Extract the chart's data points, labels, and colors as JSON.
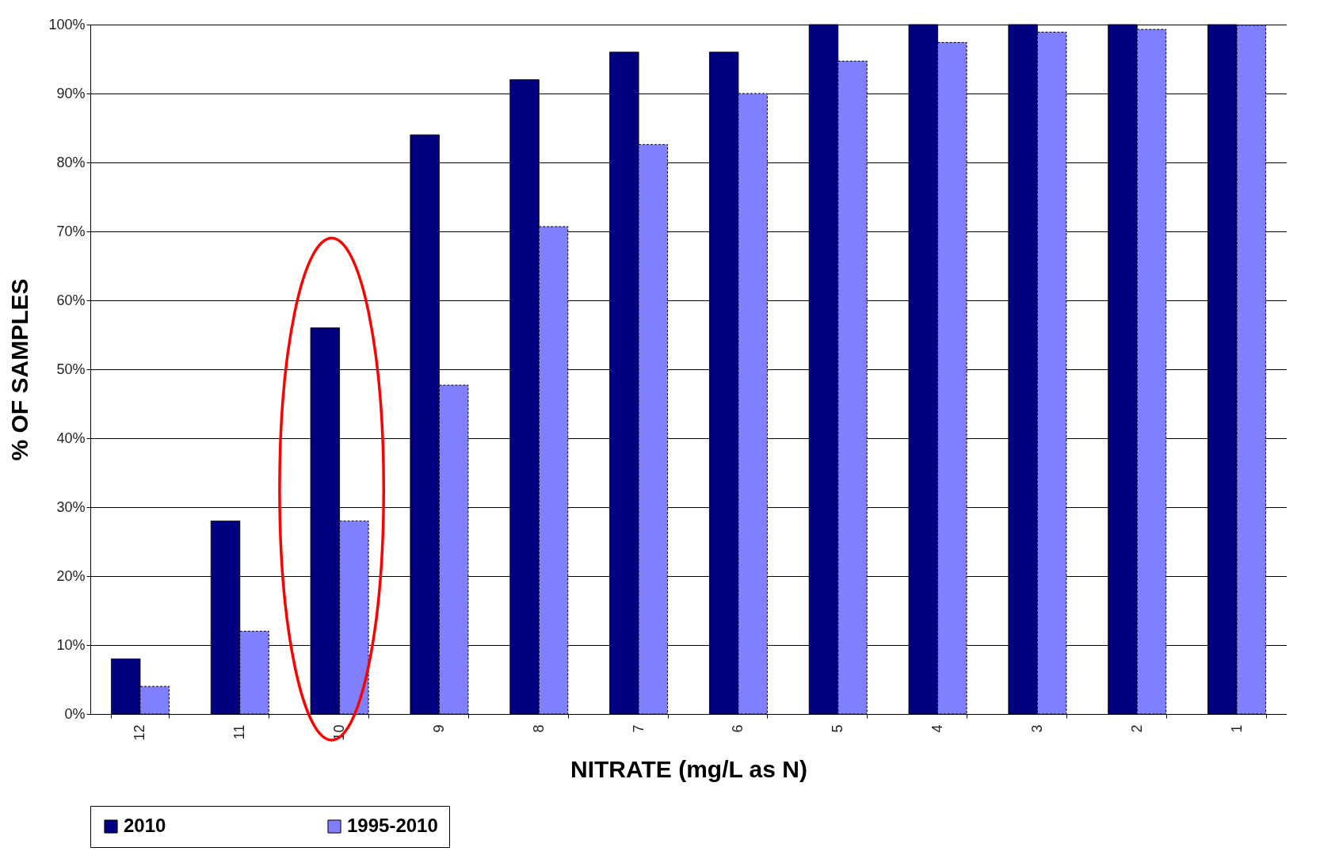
{
  "chart_data": {
    "type": "bar",
    "xlabel": "NITRATE (mg/L as N)",
    "ylabel": "% OF SAMPLES",
    "categories": [
      "12",
      "11",
      "10",
      "9",
      "8",
      "7",
      "6",
      "5",
      "4",
      "3",
      "2",
      "1"
    ],
    "series": [
      {
        "name": "2010",
        "color": "#000080",
        "values": [
          8,
          28,
          56,
          84,
          92,
          96,
          96,
          100,
          100,
          100,
          100,
          100
        ]
      },
      {
        "name": "1995-2010",
        "color": "#8080ff",
        "values": [
          4,
          12,
          28,
          47.7,
          70.7,
          82.6,
          90,
          94.7,
          97.4,
          98.9,
          99.3,
          99.9
        ]
      }
    ],
    "ylim": [
      0,
      100
    ],
    "yticks": [
      {
        "value": 0,
        "label": "0%"
      },
      {
        "value": 10,
        "label": "10%"
      },
      {
        "value": 20,
        "label": "20%"
      },
      {
        "value": 30,
        "label": "30%"
      },
      {
        "value": 40,
        "label": "40%"
      },
      {
        "value": 50,
        "label": "50%"
      },
      {
        "value": 60,
        "label": "60%"
      },
      {
        "value": 70,
        "label": "70%"
      },
      {
        "value": 80,
        "label": "80%"
      },
      {
        "value": 90,
        "label": "90%"
      },
      {
        "value": 100,
        "label": "100%"
      }
    ],
    "grid": "y",
    "legend": "bottom"
  }
}
